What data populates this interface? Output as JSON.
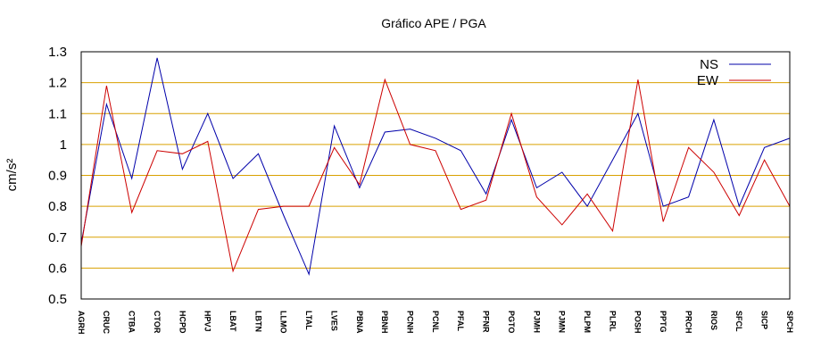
{
  "chart_data": {
    "type": "line",
    "title": "Gráfico  APE / PGA",
    "xlabel": "",
    "ylabel": "cm/s²",
    "ylim": [
      0.5,
      1.3
    ],
    "yticks": [
      "0.5",
      "0.6",
      "0.7",
      "0.8",
      "0.9",
      "1",
      "1.1",
      "1.2",
      "1.3"
    ],
    "grid": "horizontal",
    "legend_position": "top-right",
    "categories": [
      "AGRH",
      "CRUC",
      "CTBA",
      "CTOR",
      "HCPD",
      "HPVJ",
      "LBAT",
      "LBTN",
      "LLMO",
      "LTAL",
      "LVES",
      "PBNA",
      "PBNH",
      "PCNH",
      "PCNL",
      "PFAL",
      "PFNR",
      "PGTO",
      "PJMH",
      "PJMN",
      "PLPM",
      "PLRL",
      "POSH",
      "PPTG",
      "PRCH",
      "RIOS",
      "SFCL",
      "SICP",
      "SPCH"
    ],
    "series": [
      {
        "name": "NS",
        "color": "#0000aa",
        "values": [
          0.68,
          1.13,
          0.89,
          1.28,
          0.92,
          1.1,
          0.89,
          0.97,
          0.77,
          0.58,
          1.06,
          0.86,
          1.04,
          1.05,
          1.02,
          0.98,
          0.84,
          1.08,
          0.86,
          0.91,
          0.8,
          0.95,
          1.1,
          0.8,
          0.83,
          1.08,
          0.8,
          0.99,
          1.02
        ]
      },
      {
        "name": "EW",
        "color": "#cc0000",
        "values": [
          0.67,
          1.19,
          0.78,
          0.98,
          0.97,
          1.01,
          0.59,
          0.79,
          0.8,
          0.8,
          0.99,
          0.87,
          1.21,
          1.0,
          0.98,
          0.79,
          0.82,
          1.1,
          0.83,
          0.74,
          0.84,
          0.72,
          1.21,
          0.75,
          0.99,
          0.91,
          0.77,
          0.95,
          0.8
        ]
      }
    ]
  }
}
